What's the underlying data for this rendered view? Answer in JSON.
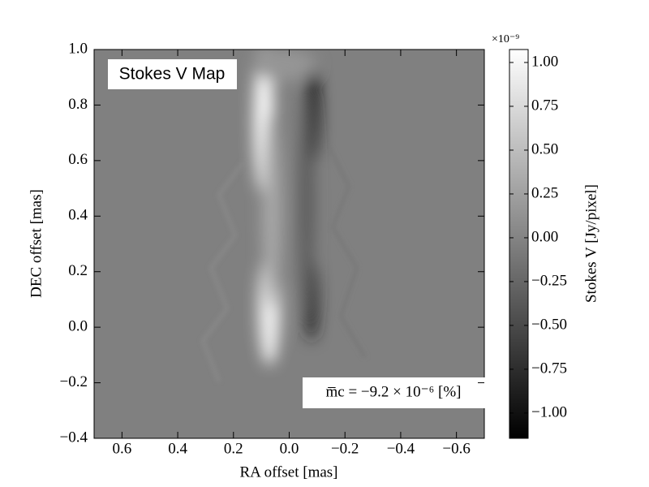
{
  "chart_data": {
    "type": "heatmap",
    "xlabel": "RA offset [mas]",
    "ylabel": "DEC offset [mas]",
    "xlim": [
      0.7,
      -0.7
    ],
    "xticks": [
      {
        "value": 0.6,
        "label": "0.6"
      },
      {
        "value": 0.4,
        "label": "0.4"
      },
      {
        "value": 0.2,
        "label": "0.2"
      },
      {
        "value": 0,
        "label": "0.0"
      },
      {
        "value": -0.2,
        "label": "−0.2"
      },
      {
        "value": -0.4,
        "label": "−0.4"
      },
      {
        "value": -0.6,
        "label": "−0.6"
      }
    ],
    "ylim": [
      -0.4,
      1.0
    ],
    "yticks": [
      {
        "value": 1.0,
        "label": "1.0"
      },
      {
        "value": 0.8,
        "label": "0.8"
      },
      {
        "value": 0.6,
        "label": "0.6"
      },
      {
        "value": 0.4,
        "label": "0.4"
      },
      {
        "value": 0.2,
        "label": "0.2"
      },
      {
        "value": 0,
        "label": "0.0"
      },
      {
        "value": -0.2,
        "label": "−0.2"
      },
      {
        "value": -0.4,
        "label": "−0.4"
      }
    ],
    "map_label": "Stokes V Map",
    "annotation": "m̅c =  −9.2 × 10⁻⁶ [%]",
    "colorbar": {
      "label": "Stokes V [Jy/pixel]",
      "offset_label": "×10⁻⁹",
      "cmap": "gray",
      "clim": [
        -1.144,
        1.074
      ],
      "ticks": [
        {
          "value": 1.0,
          "label": "1.00"
        },
        {
          "value": 0.75,
          "label": "0.75"
        },
        {
          "value": 0.5,
          "label": "0.50"
        },
        {
          "value": 0.25,
          "label": "0.25"
        },
        {
          "value": 0,
          "label": "0.00"
        },
        {
          "value": -0.25,
          "label": "−0.25"
        },
        {
          "value": -0.5,
          "label": "−0.50"
        },
        {
          "value": -0.75,
          "label": "−0.75"
        },
        {
          "value": -1.0,
          "label": "−1.00"
        }
      ]
    }
  }
}
